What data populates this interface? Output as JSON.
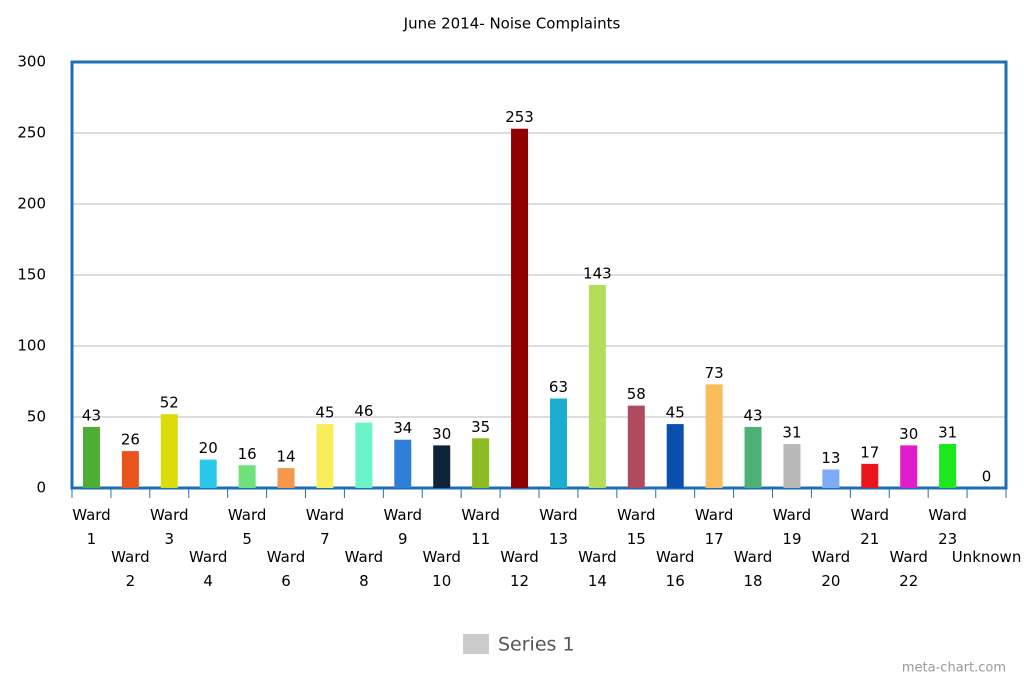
{
  "chart_data": {
    "type": "bar",
    "title": "June 2014- Noise Complaints",
    "categories": [
      "Ward 1",
      "Ward 2",
      "Ward 3",
      "Ward 4",
      "Ward 5",
      "Ward 6",
      "Ward 7",
      "Ward 8",
      "Ward 9",
      "Ward 10",
      "Ward 11",
      "Ward 12",
      "Ward 13",
      "Ward 14",
      "Ward 15",
      "Ward 16",
      "Ward 17",
      "Ward 18",
      "Ward 19",
      "Ward 20",
      "Ward 21",
      "Ward 22",
      "Ward 23",
      "Unknown"
    ],
    "series": [
      {
        "name": "Series 1",
        "color": "#cccccc",
        "values": [
          43,
          26,
          52,
          20,
          16,
          14,
          45,
          46,
          34,
          30,
          35,
          253,
          63,
          143,
          58,
          45,
          73,
          43,
          31,
          13,
          17,
          30,
          31,
          0
        ],
        "colors": [
          "#4cae34",
          "#e8541c",
          "#dcdc0c",
          "#2ac8e8",
          "#6ee07c",
          "#f4964c",
          "#f8ee5c",
          "#6cf4c8",
          "#2f7ed8",
          "#0d233a",
          "#8bbc21",
          "#910000",
          "#1aadce",
          "#b2de5a",
          "#b04a5e",
          "#0b4fae",
          "#fbbd5c",
          "#4db075",
          "#b9b9b9",
          "#7fabf5",
          "#e8161c",
          "#e01ccc",
          "#1ce81c",
          "#888888"
        ]
      }
    ],
    "ylim": [
      0,
      300
    ],
    "yticks": [
      0,
      50,
      100,
      150,
      200,
      250,
      300
    ],
    "grid": true,
    "watermark": "meta-chart.com"
  }
}
